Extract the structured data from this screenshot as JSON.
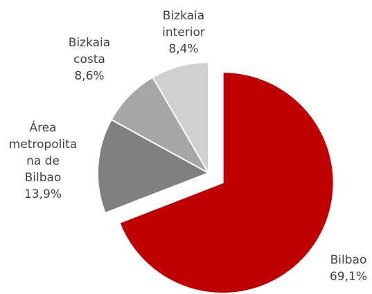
{
  "chart_data": {
    "type": "pie",
    "categories": [
      "Bilbao",
      "Área metropolitana de Bilbao",
      "Bizkaia costa",
      "Bizkaia interior"
    ],
    "values": [
      69.1,
      13.9,
      8.6,
      8.4
    ],
    "value_labels": [
      "69,1%",
      "13,9%",
      "8,6%",
      "8,4%"
    ],
    "colors": [
      "#c00000",
      "#808080",
      "#a6a6a6",
      "#d0d0d0"
    ]
  }
}
